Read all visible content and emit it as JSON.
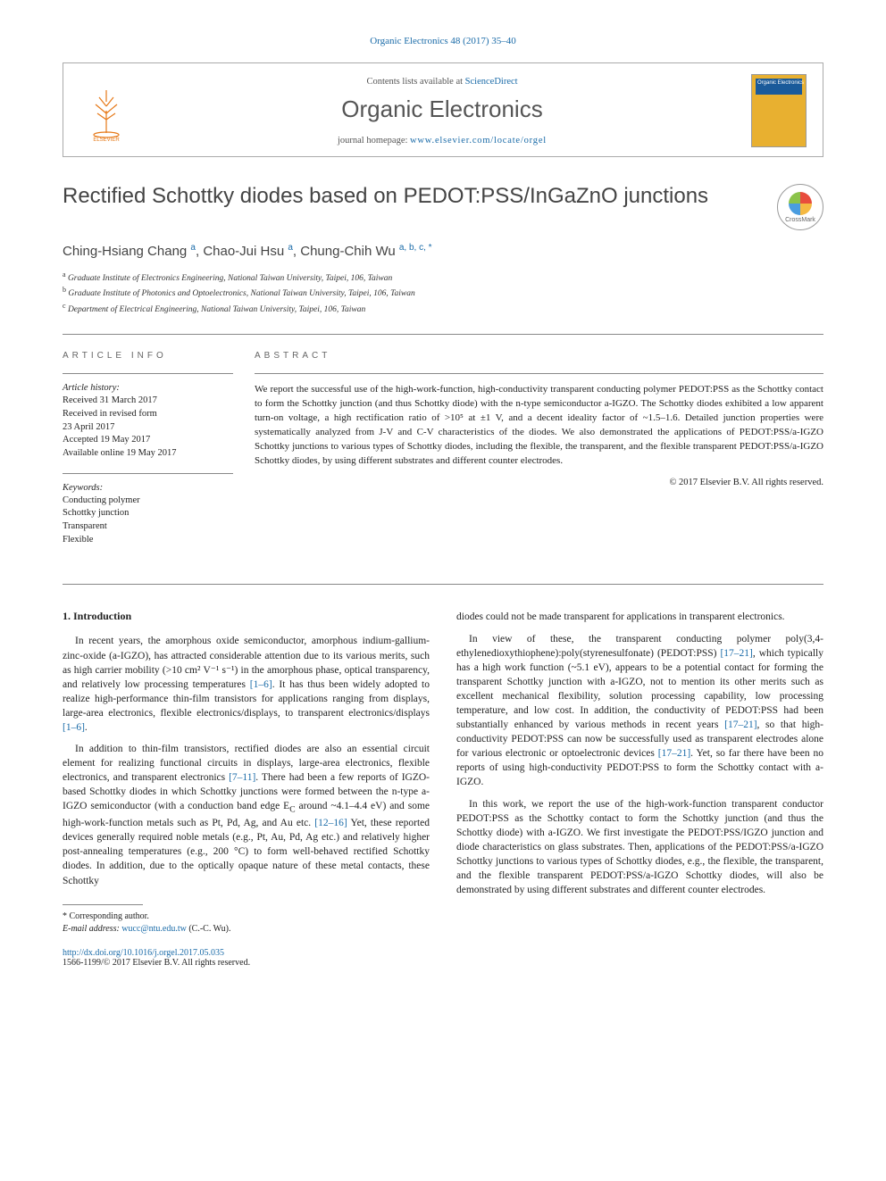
{
  "citation": "Organic Electronics 48 (2017) 35–40",
  "header": {
    "contents_prefix": "Contents lists available at ",
    "contents_link": "ScienceDirect",
    "journal": "Organic Electronics",
    "homepage_prefix": "journal homepage: ",
    "homepage_url": "www.elsevier.com/locate/orgel",
    "cover_label": "Organic Electronics"
  },
  "title": "Rectified Schottky diodes based on PEDOT:PSS/InGaZnO junctions",
  "crossmark": "CrossMark",
  "authors_html": "Ching-Hsiang Chang <sup>a</sup>, Chao-Jui Hsu <sup>a</sup>, Chung-Chih Wu <sup>a, b, c, <span class='star'>*</span></sup>",
  "affiliations": [
    {
      "sup": "a",
      "text": "Graduate Institute of Electronics Engineering, National Taiwan University, Taipei, 106, Taiwan"
    },
    {
      "sup": "b",
      "text": "Graduate Institute of Photonics and Optoelectronics, National Taiwan University, Taipei, 106, Taiwan"
    },
    {
      "sup": "c",
      "text": "Department of Electrical Engineering, National Taiwan University, Taipei, 106, Taiwan"
    }
  ],
  "info": {
    "heading": "ARTICLE INFO",
    "history_head": "Article history:",
    "history": "Received 31 March 2017\nReceived in revised form\n23 April 2017\nAccepted 19 May 2017\nAvailable online 19 May 2017",
    "keywords_head": "Keywords:",
    "keywords": "Conducting polymer\nSchottky junction\nTransparent\nFlexible"
  },
  "abstract": {
    "heading": "ABSTRACT",
    "text": "We report the successful use of the high-work-function, high-conductivity transparent conducting polymer PEDOT:PSS as the Schottky contact to form the Schottky junction (and thus Schottky diode) with the n-type semiconductor a-IGZO. The Schottky diodes exhibited a low apparent turn-on voltage, a high rectification ratio of >10⁵ at ±1 V, and a decent ideality factor of ~1.5–1.6. Detailed junction properties were systematically analyzed from J-V and C-V characteristics of the diodes. We also demonstrated the applications of PEDOT:PSS/a-IGZO Schottky junctions to various types of Schottky diodes, including the flexible, the transparent, and the flexible transparent PEDOT:PSS/a-IGZO Schottky diodes, by using different substrates and different counter electrodes.",
    "copyright": "© 2017 Elsevier B.V. All rights reserved."
  },
  "section1_head": "1. Introduction",
  "left_paras": [
    "In recent years, the amorphous oxide semiconductor, amorphous indium-gallium-zinc-oxide (a-IGZO), has attracted considerable attention due to its various merits, such as high carrier mobility (>10 cm² V⁻¹ s⁻¹) in the amorphous phase, optical transparency, and relatively low processing temperatures <span class='ref'>[1–6]</span>. It has thus been widely adopted to realize high-performance thin-film transistors for applications ranging from displays, large-area electronics, flexible electronics/displays, to transparent electronics/displays <span class='ref'>[1–6]</span>.",
    "In addition to thin-film transistors, rectified diodes are also an essential circuit element for realizing functional circuits in displays, large-area electronics, flexible electronics, and transparent electronics <span class='ref'>[7–11]</span>. There had been a few reports of IGZO-based Schottky diodes in which Schottky junctions were formed between the n-type a-IGZO semiconductor (with a conduction band edge E<sub>C</sub> around ~4.1–4.4 eV) and some high-work-function metals such as Pt, Pd, Ag, and Au etc. <span class='ref'>[12–16]</span> Yet, these reported devices generally required noble metals (e.g., Pt, Au, Pd, Ag etc.) and relatively higher post-annealing temperatures (e.g., 200 °C) to form well-behaved rectified Schottky diodes. In addition, due to the optically opaque nature of these metal contacts, these Schottky"
  ],
  "right_paras": [
    "diodes could not be made transparent for applications in transparent electronics.",
    "In view of these, the transparent conducting polymer poly(3,4-ethylenedioxythiophene):poly(styrenesulfonate) (PEDOT:PSS) <span class='ref'>[17–21]</span>, which typically has a high work function (~5.1 eV), appears to be a potential contact for forming the transparent Schottky junction with a-IGZO, not to mention its other merits such as excellent mechanical flexibility, solution processing capability, low processing temperature, and low cost. In addition, the conductivity of PEDOT:PSS had been substantially enhanced by various methods in recent years <span class='ref'>[17–21]</span>, so that high-conductivity PEDOT:PSS can now be successfully used as transparent electrodes alone for various electronic or optoelectronic devices <span class='ref'>[17–21]</span>. Yet, so far there have been no reports of using high-conductivity PEDOT:PSS to form the Schottky contact with a-IGZO.",
    "In this work, we report the use of the high-work-function transparent conductor PEDOT:PSS as the Schottky contact to form the Schottky junction (and thus the Schottky diode) with a-IGZO. We first investigate the PEDOT:PSS/IGZO junction and diode characteristics on glass substrates. Then, applications of the PEDOT:PSS/a-IGZO Schottky junctions to various types of Schottky diodes, e.g., the flexible, the transparent, and the flexible transparent PEDOT:PSS/a-IGZO Schottky diodes, will also be demonstrated by using different substrates and different counter electrodes."
  ],
  "footnote": {
    "star": "* Corresponding author.",
    "email_label": "E-mail address: ",
    "email": "wucc@ntu.edu.tw",
    "email_suffix": " (C.-C. Wu)."
  },
  "doi": {
    "url": "http://dx.doi.org/10.1016/j.orgel.2017.05.035",
    "line2": "1566-1199/© 2017 Elsevier B.V. All rights reserved."
  }
}
